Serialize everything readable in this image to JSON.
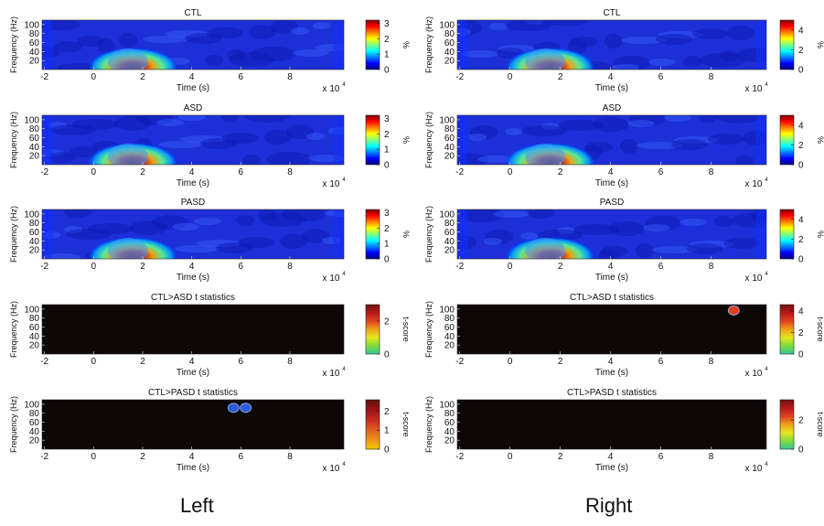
{
  "captions": {
    "left": "Left",
    "right": "Right"
  },
  "chart_data": [
    {
      "type": "heatmap",
      "column": "left",
      "title": "CTL",
      "xlabel": "Time (s)",
      "ylabel": "Frequency (Hz)",
      "x_exponent": "x 10",
      "x_ticks": [
        "-2",
        "0",
        "2",
        "4",
        "6",
        "8"
      ],
      "y_ticks": [
        "20",
        "40",
        "60",
        "80",
        "100"
      ],
      "colormap": "jet",
      "colorbar_label": "%",
      "colorbar_ticks": [
        "0",
        "1",
        "2",
        "3"
      ],
      "clim": [
        0,
        3.2
      ]
    },
    {
      "type": "heatmap",
      "column": "left",
      "title": "ASD",
      "xlabel": "Time (s)",
      "ylabel": "Frequency (Hz)",
      "x_exponent": "x 10",
      "x_ticks": [
        "-2",
        "0",
        "2",
        "4",
        "6",
        "8"
      ],
      "y_ticks": [
        "20",
        "40",
        "60",
        "80",
        "100"
      ],
      "colormap": "jet",
      "colorbar_label": "%",
      "colorbar_ticks": [
        "0",
        "1",
        "2",
        "3"
      ],
      "clim": [
        0,
        3.2
      ]
    },
    {
      "type": "heatmap",
      "column": "left",
      "title": "PASD",
      "xlabel": "Time (s)",
      "ylabel": "Frequency (Hz)",
      "x_exponent": "x 10",
      "x_ticks": [
        "-2",
        "0",
        "2",
        "4",
        "6",
        "8"
      ],
      "y_ticks": [
        "20",
        "40",
        "60",
        "80",
        "100"
      ],
      "colormap": "jet",
      "colorbar_label": "%",
      "colorbar_ticks": [
        "0",
        "1",
        "2",
        "3"
      ],
      "clim": [
        0,
        3.2
      ]
    },
    {
      "type": "heatmap",
      "column": "left",
      "title": "CTL>ASD t statistics",
      "xlabel": "Time (s)",
      "ylabel": "Frequency (Hz)",
      "x_exponent": "x 10",
      "x_ticks": [
        "-2",
        "0",
        "2",
        "4",
        "6",
        "8"
      ],
      "y_ticks": [
        "20",
        "40",
        "60",
        "80",
        "100"
      ],
      "colormap": "hot-green",
      "colorbar_label": "t-score",
      "colorbar_ticks": [
        "0",
        "2"
      ],
      "clim": [
        0,
        3
      ]
    },
    {
      "type": "heatmap",
      "column": "left",
      "title": "CTL>PASD t statistics",
      "xlabel": "Time (s)",
      "ylabel": "Frequency (Hz)",
      "x_exponent": "x 10",
      "x_ticks": [
        "-2",
        "0",
        "2",
        "4",
        "6",
        "8"
      ],
      "y_ticks": [
        "20",
        "40",
        "60",
        "80",
        "100"
      ],
      "colormap": "hot-yellow",
      "colorbar_label": "t-score",
      "colorbar_ticks": [
        "0",
        "1",
        "2"
      ],
      "clim": [
        0,
        2.6
      ],
      "blobs": [
        {
          "time": 5.7,
          "freq": 92,
          "color": "#2a5bd7"
        },
        {
          "time": 6.2,
          "freq": 92,
          "color": "#2a5bd7"
        }
      ]
    },
    {
      "type": "heatmap",
      "column": "right",
      "title": "CTL",
      "xlabel": "Time (s)",
      "ylabel": "Frequency (Hz)",
      "x_exponent": "x 10",
      "x_ticks": [
        "-2",
        "0",
        "2",
        "4",
        "6",
        "8"
      ],
      "y_ticks": [
        "20",
        "40",
        "60",
        "80",
        "100"
      ],
      "colormap": "jet",
      "colorbar_label": "%",
      "colorbar_ticks": [
        "0",
        "2",
        "4"
      ],
      "clim": [
        0,
        5
      ]
    },
    {
      "type": "heatmap",
      "column": "right",
      "title": "ASD",
      "xlabel": "Time (s)",
      "ylabel": "Frequency (Hz)",
      "x_exponent": "x 10",
      "x_ticks": [
        "-2",
        "0",
        "2",
        "4",
        "6",
        "8"
      ],
      "y_ticks": [
        "20",
        "40",
        "60",
        "80",
        "100"
      ],
      "colormap": "jet",
      "colorbar_label": "%",
      "colorbar_ticks": [
        "0",
        "2",
        "4"
      ],
      "clim": [
        0,
        5
      ]
    },
    {
      "type": "heatmap",
      "column": "right",
      "title": "PASD",
      "xlabel": "Time (s)",
      "ylabel": "Frequency (Hz)",
      "x_exponent": "x 10",
      "x_ticks": [
        "-2",
        "0",
        "2",
        "4",
        "6",
        "8"
      ],
      "y_ticks": [
        "20",
        "40",
        "60",
        "80",
        "100"
      ],
      "colormap": "jet",
      "colorbar_label": "%",
      "colorbar_ticks": [
        "0",
        "2",
        "4"
      ],
      "clim": [
        0,
        5
      ]
    },
    {
      "type": "heatmap",
      "column": "right",
      "title": "CTL>ASD t statistics",
      "xlabel": "Time (s)",
      "ylabel": "Frequency (Hz)",
      "x_exponent": "x 10",
      "x_ticks": [
        "-2",
        "0",
        "2",
        "4",
        "6",
        "8"
      ],
      "y_ticks": [
        "20",
        "40",
        "60",
        "80",
        "100"
      ],
      "colormap": "hot-green",
      "colorbar_label": "t-score",
      "colorbar_ticks": [
        "0",
        "2",
        "4"
      ],
      "clim": [
        0,
        4.6
      ],
      "blobs": [
        {
          "time": 8.9,
          "freq": 97,
          "color": "#e04020"
        }
      ]
    },
    {
      "type": "heatmap",
      "column": "right",
      "title": "CTL>PASD t statistics",
      "xlabel": "Time (s)",
      "ylabel": "Frequency (Hz)",
      "x_exponent": "x 10",
      "x_ticks": [
        "-2",
        "0",
        "2",
        "4",
        "6",
        "8"
      ],
      "y_ticks": [
        "20",
        "40",
        "60",
        "80",
        "100"
      ],
      "colormap": "hot-green",
      "colorbar_label": "t-score",
      "colorbar_ticks": [
        "0",
        "2"
      ],
      "clim": [
        0,
        3.4
      ]
    }
  ]
}
